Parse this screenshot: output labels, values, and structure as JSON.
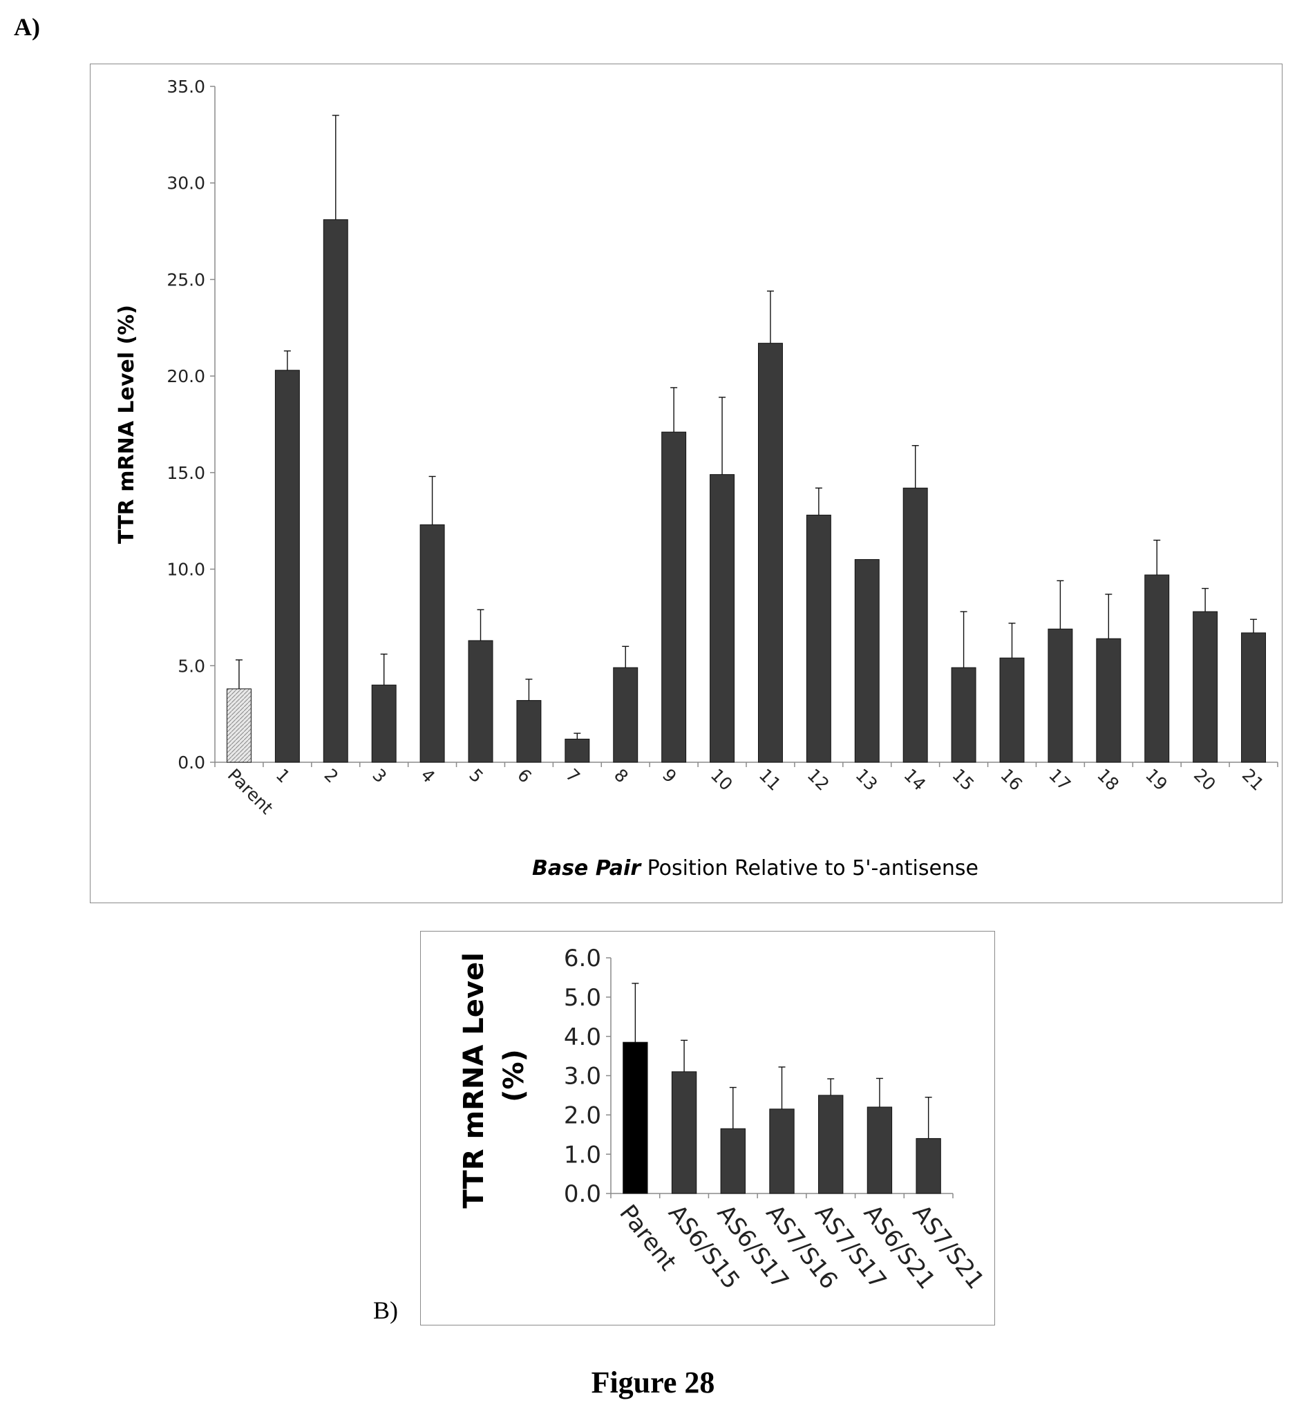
{
  "panel_a_label": "A)",
  "panel_b_label": "B)",
  "figure_caption": "Figure 28",
  "colors": {
    "bar_dark": "#3a3a3a",
    "bar_parent_a": "#d6d6d6",
    "bar_parent_b": "#000000",
    "axis": "#8a8a8a",
    "frame": "#8a8a8a"
  },
  "chart_data": [
    {
      "type": "bar",
      "title": "",
      "ylabel": "TTR mRNA Level (%)",
      "xlabel_italic": "Base Pair",
      "xlabel_rest": " Position Relative to 5'-antisense",
      "ylim": [
        0,
        35
      ],
      "yticks": [
        "0.0",
        "5.0",
        "10.0",
        "15.0",
        "20.0",
        "25.0",
        "30.0",
        "35.0"
      ],
      "ytick_values": [
        0,
        5,
        10,
        15,
        20,
        25,
        30,
        35
      ],
      "categories": [
        "Parent",
        "1",
        "2",
        "3",
        "4",
        "5",
        "6",
        "7",
        "8",
        "9",
        "10",
        "11",
        "12",
        "13",
        "14",
        "15",
        "16",
        "17",
        "18",
        "19",
        "20",
        "21"
      ],
      "values": [
        3.8,
        20.3,
        28.1,
        4.0,
        12.3,
        6.3,
        3.2,
        1.2,
        4.9,
        17.1,
        14.9,
        21.7,
        12.8,
        10.5,
        14.2,
        4.9,
        5.4,
        6.9,
        6.4,
        9.7,
        7.8,
        6.7
      ],
      "error": [
        1.5,
        1.0,
        5.4,
        1.6,
        2.5,
        1.6,
        1.1,
        0.3,
        1.1,
        2.3,
        4.0,
        2.7,
        1.4,
        0.0,
        2.2,
        2.9,
        1.8,
        2.5,
        2.3,
        1.8,
        1.2,
        0.7
      ],
      "grid": false,
      "legend": "none"
    },
    {
      "type": "bar",
      "title": "",
      "ylabel_line1": "TTR mRNA Level",
      "ylabel_line2": "(%)",
      "ylim": [
        0,
        6
      ],
      "yticks": [
        "0.0",
        "1.0",
        "2.0",
        "3.0",
        "4.0",
        "5.0",
        "6.0"
      ],
      "ytick_values": [
        0,
        1,
        2,
        3,
        4,
        5,
        6
      ],
      "categories": [
        "Parent",
        "AS6/S15",
        "AS6/S17",
        "AS7/S16",
        "AS7/S17",
        "AS6/S21",
        "AS7/S21"
      ],
      "values": [
        3.85,
        3.1,
        1.65,
        2.15,
        2.5,
        2.2,
        1.4
      ],
      "error": [
        1.5,
        0.8,
        1.05,
        1.07,
        0.42,
        0.73,
        1.05
      ],
      "grid": false,
      "legend": "none"
    }
  ]
}
